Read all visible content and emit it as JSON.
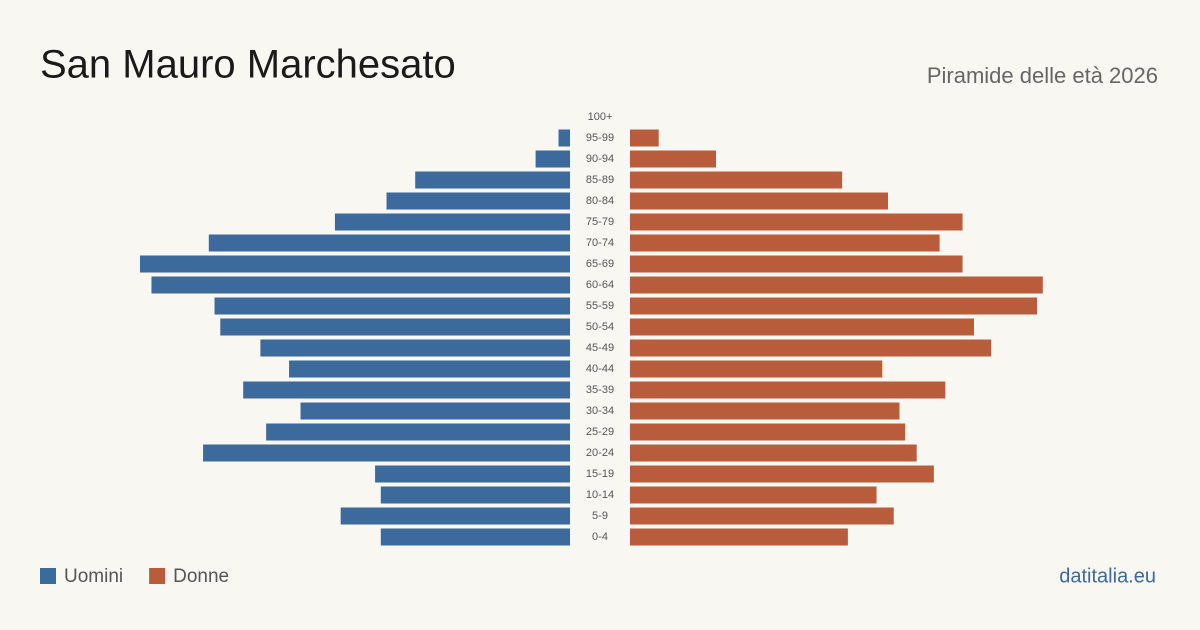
{
  "chart_data": {
    "type": "pyramid",
    "title": "San Mauro Marchesato",
    "subtitle": "Piramide delle età 2026",
    "categories": [
      "100+",
      "95-99",
      "90-94",
      "85-89",
      "80-84",
      "75-79",
      "70-74",
      "65-69",
      "60-64",
      "55-59",
      "50-54",
      "45-49",
      "40-44",
      "35-39",
      "30-34",
      "25-29",
      "20-24",
      "15-19",
      "10-14",
      "5-9",
      "0-4"
    ],
    "series": [
      {
        "name": "Uomini",
        "color": "#3d6a9c",
        "values": [
          0,
          2,
          6,
          27,
          32,
          41,
          63,
          75,
          73,
          62,
          61,
          54,
          49,
          57,
          47,
          53,
          64,
          34,
          33,
          40,
          33
        ]
      },
      {
        "name": "Donne",
        "color": "#b85c3c",
        "values": [
          0,
          5,
          15,
          37,
          45,
          58,
          54,
          58,
          72,
          71,
          60,
          63,
          44,
          55,
          47,
          48,
          50,
          53,
          43,
          46,
          38
        ]
      }
    ],
    "source": "datitalia.eu"
  }
}
